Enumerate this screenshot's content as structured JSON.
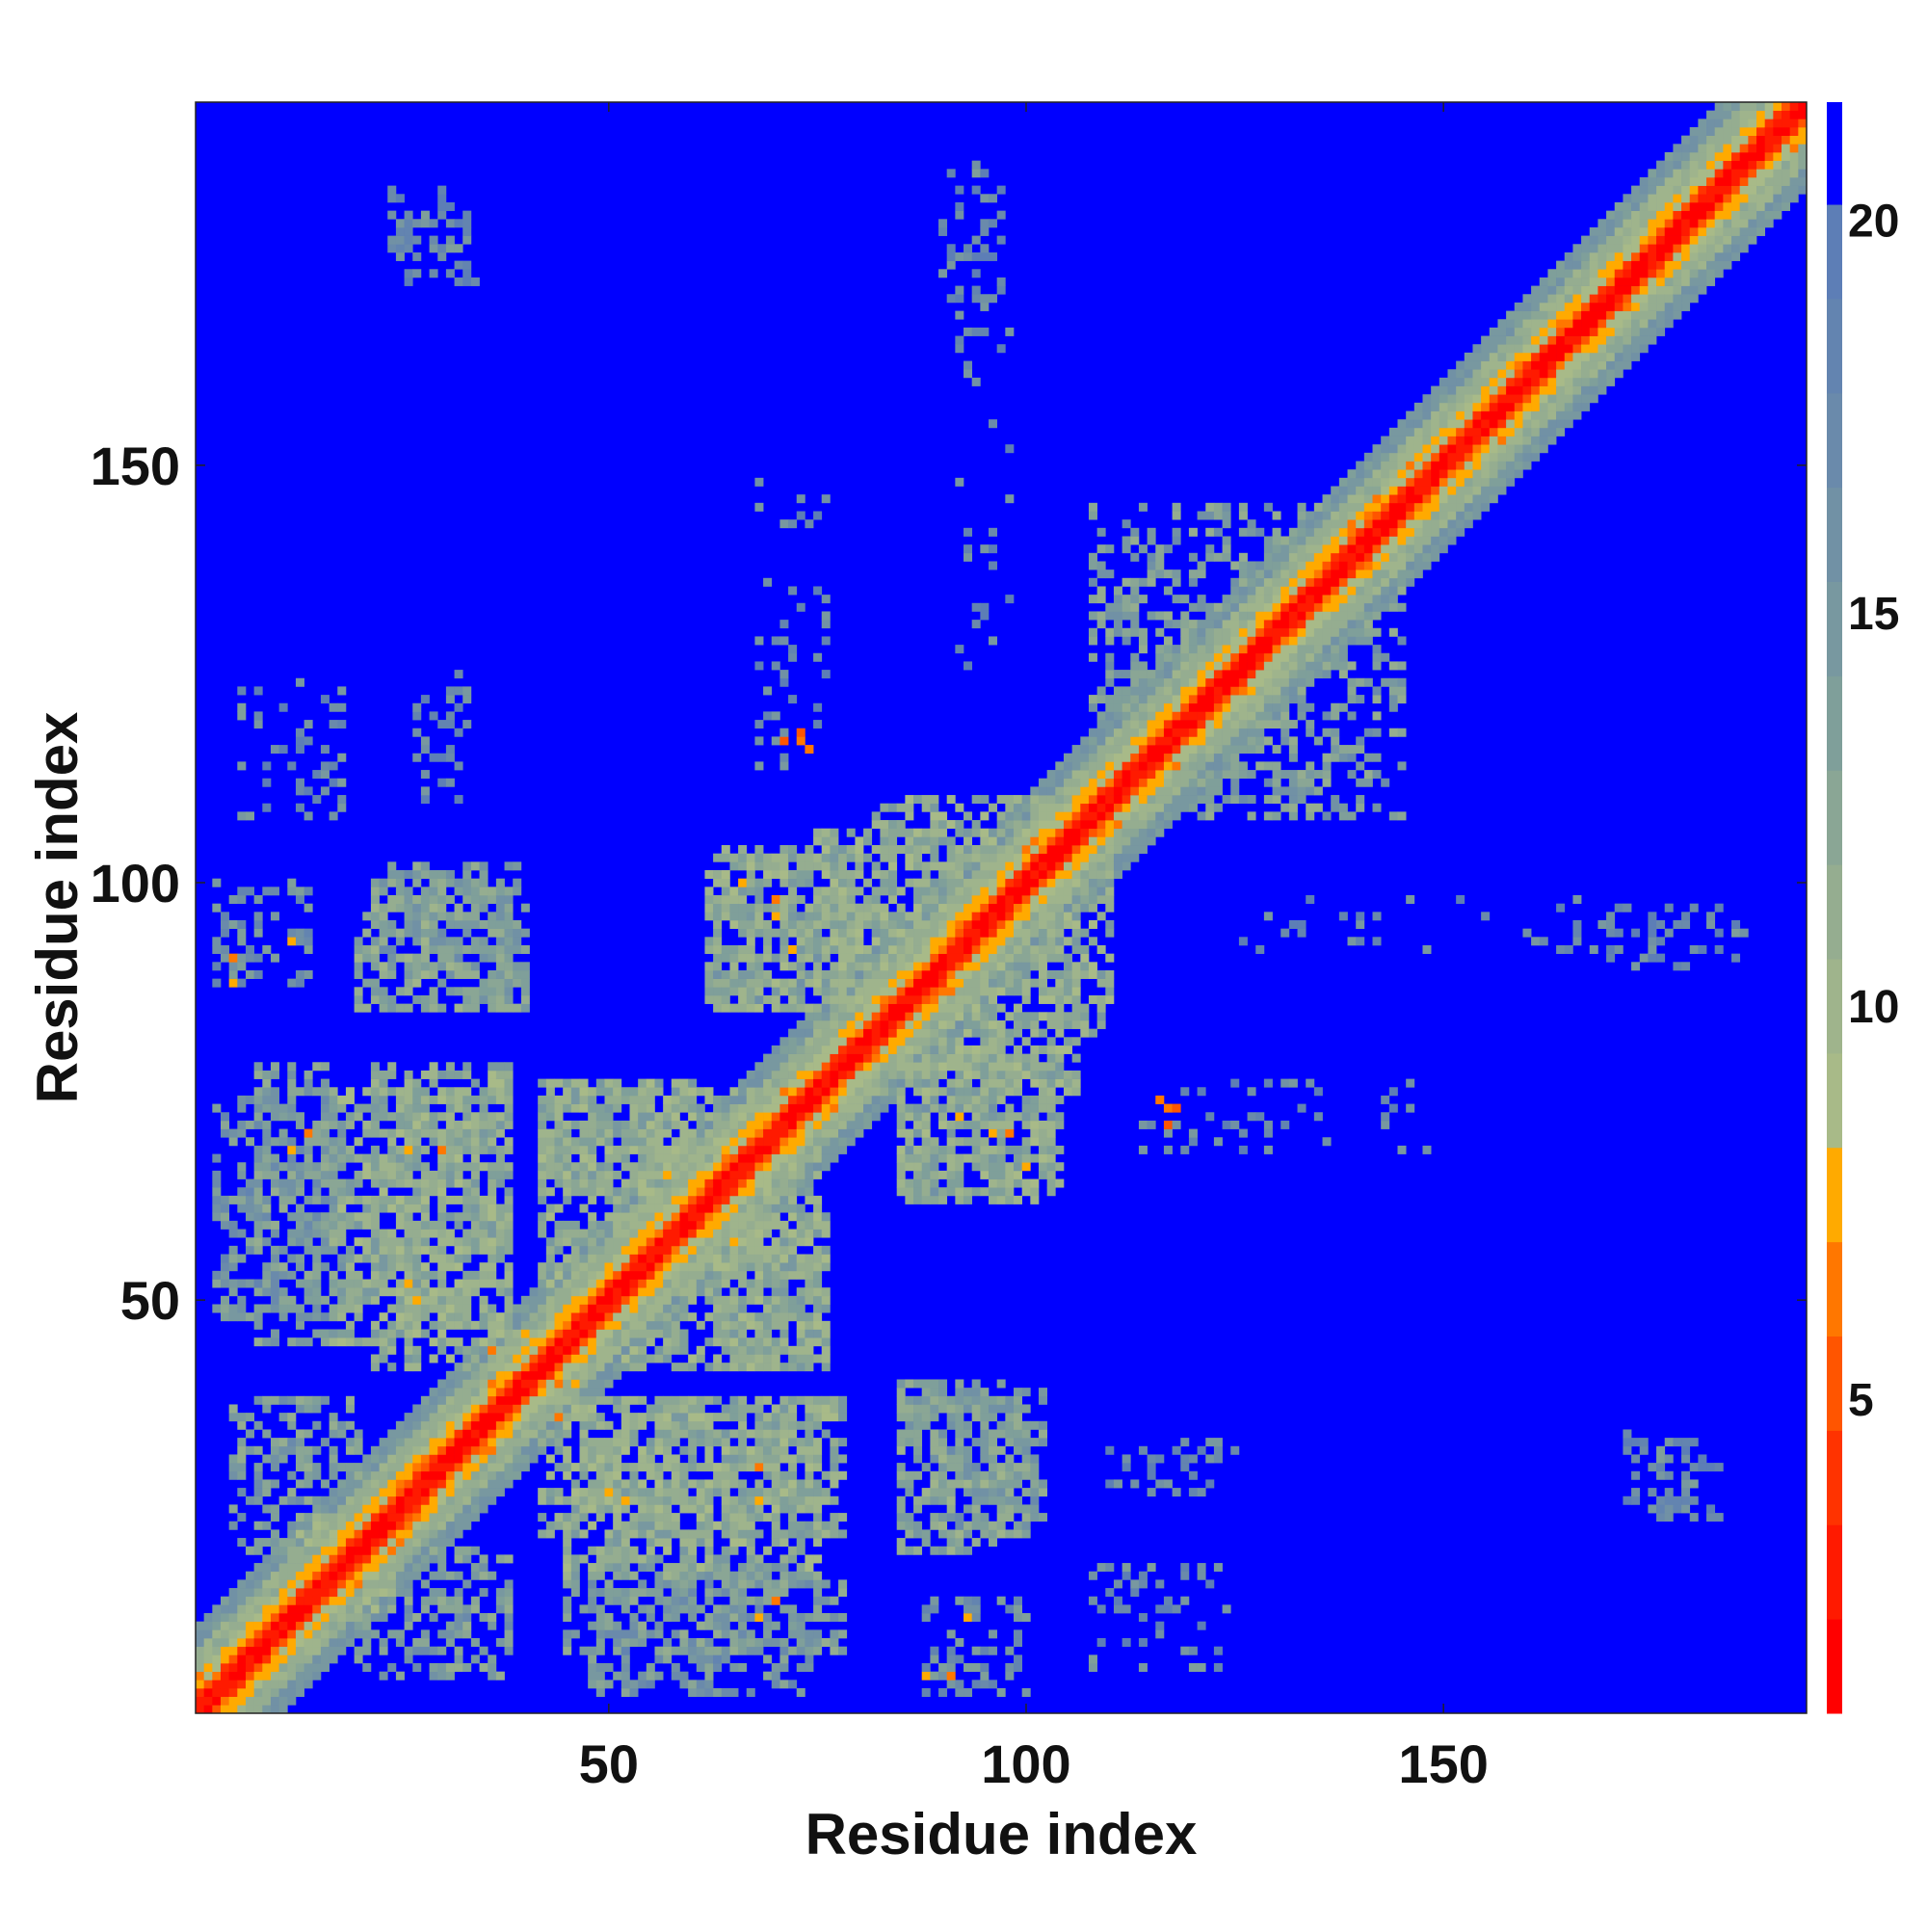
{
  "chart_data": {
    "type": "heatmap",
    "xlabel": "Residue index",
    "ylabel": "Residue index",
    "n_residues": 193,
    "xlim": [
      1,
      193
    ],
    "ylim": [
      1,
      193
    ],
    "xticks": [
      50,
      100,
      150
    ],
    "yticks": [
      50,
      100,
      150
    ],
    "colorbar": {
      "range": [
        1,
        21.5
      ],
      "ticks": [
        5,
        10,
        15,
        20
      ],
      "levels": [
        {
          "from": 1,
          "to": 2.2,
          "color": "#ff0000"
        },
        {
          "from": 2.2,
          "to": 3.4,
          "color": "#ff1a00"
        },
        {
          "from": 3.4,
          "to": 4.6,
          "color": "#ff3300"
        },
        {
          "from": 4.6,
          "to": 5.8,
          "color": "#ff5500"
        },
        {
          "from": 5.8,
          "to": 7.0,
          "color": "#ff7700"
        },
        {
          "from": 7.0,
          "to": 8.2,
          "color": "#ffaa00"
        },
        {
          "from": 8.2,
          "to": 9.4,
          "color": "#a8ba88"
        },
        {
          "from": 9.4,
          "to": 10.6,
          "color": "#9fb48c"
        },
        {
          "from": 10.6,
          "to": 11.8,
          "color": "#95ad90"
        },
        {
          "from": 11.8,
          "to": 13.0,
          "color": "#8aa695"
        },
        {
          "from": 13.0,
          "to": 14.2,
          "color": "#7f9f9a"
        },
        {
          "from": 14.2,
          "to": 15.4,
          "color": "#7898a0"
        },
        {
          "from": 15.4,
          "to": 16.6,
          "color": "#7191a5"
        },
        {
          "from": 16.6,
          "to": 17.8,
          "color": "#6a8aab"
        },
        {
          "from": 17.8,
          "to": 19.0,
          "color": "#6384b0"
        },
        {
          "from": 19.0,
          "to": 20.2,
          "color": "#5d7eb6"
        },
        {
          "from": 20.2,
          "to": 21.5,
          "color": "#0000ff"
        }
      ]
    },
    "diagonal_band": [
      {
        "max_offset": 1,
        "value": 2
      },
      {
        "max_offset": 2,
        "value": 5
      },
      {
        "max_offset": 4,
        "value": 8
      },
      {
        "max_offset": 7,
        "value": 11
      },
      {
        "max_offset": 10,
        "value": 15
      }
    ],
    "background_value": 21,
    "contact_regions": [
      {
        "x": [
          3,
          14
        ],
        "y": [
          88,
          100
        ],
        "value": 16,
        "density": 0.35
      },
      {
        "x": [
          22,
          40
        ],
        "y": [
          85,
          102
        ],
        "value": 14,
        "density": 0.5
      },
      {
        "x": [
          62,
          82
        ],
        "y": [
          85,
          103
        ],
        "value": 13,
        "density": 0.55
      },
      {
        "x": [
          82,
          106
        ],
        "y": [
          75,
          110
        ],
        "value": 12,
        "density": 0.55
      },
      {
        "x": [
          3,
          18
        ],
        "y": [
          48,
          75
        ],
        "value": 15,
        "density": 0.45
      },
      {
        "x": [
          17,
          38
        ],
        "y": [
          45,
          75
        ],
        "value": 12,
        "density": 0.6
      },
      {
        "x": [
          42,
          70
        ],
        "y": [
          52,
          75
        ],
        "value": 12,
        "density": 0.55
      },
      {
        "x": [
          62,
          76
        ],
        "y": [
          42,
          62
        ],
        "value": 12,
        "density": 0.55
      },
      {
        "x": [
          85,
          104
        ],
        "y": [
          62,
          80
        ],
        "value": 12,
        "density": 0.55
      },
      {
        "x": [
          42,
          78
        ],
        "y": [
          22,
          38
        ],
        "value": 12,
        "density": 0.55
      },
      {
        "x": [
          85,
          100
        ],
        "y": [
          20,
          38
        ],
        "value": 13,
        "density": 0.5
      },
      {
        "x": [
          20,
          38
        ],
        "y": [
          5,
          20
        ],
        "value": 14,
        "density": 0.45
      },
      {
        "x": [
          45,
          78
        ],
        "y": [
          8,
          18
        ],
        "value": 14,
        "density": 0.45
      },
      {
        "x": [
          12,
          24
        ],
        "y": [
          14,
          22
        ],
        "value": 12,
        "density": 0.5
      },
      {
        "x": [
          108,
          142
        ],
        "y": [
          108,
          145
        ],
        "value": 14,
        "density": 0.25
      },
      {
        "x": [
          27,
          33
        ],
        "y": [
          110,
          125
        ],
        "value": 17,
        "density": 0.3
      },
      {
        "x": [
          90,
          96
        ],
        "y": [
          170,
          185
        ],
        "value": 18,
        "density": 0.3
      },
      {
        "x": [
          24,
          33
        ],
        "y": [
          175,
          183
        ],
        "value": 18,
        "density": 0.35
      },
      {
        "x": [
          126,
          186
        ],
        "y": [
          92,
          98
        ],
        "value": 17,
        "density": 0.12
      },
      {
        "x": [
          110,
          150
        ],
        "y": [
          68,
          76
        ],
        "value": 17,
        "density": 0.12
      },
      {
        "x": [
          108,
          124
        ],
        "y": [
          6,
          18
        ],
        "value": 17,
        "density": 0.2
      },
      {
        "x": [
          172,
          180
        ],
        "y": [
          26,
          34
        ],
        "value": 17,
        "density": 0.35
      }
    ],
    "close_contacts": [
      {
        "x": 73,
        "y": 117,
        "value": 6
      },
      {
        "x": 71,
        "y": 117,
        "value": 5
      },
      {
        "x": 74,
        "y": 116,
        "value": 7
      },
      {
        "x": 116,
        "y": 74,
        "value": 6
      },
      {
        "x": 118,
        "y": 73,
        "value": 5
      },
      {
        "x": 88,
        "y": 5,
        "value": 7
      },
      {
        "x": 91,
        "y": 5,
        "value": 6
      },
      {
        "x": 12,
        "y": 93,
        "value": 7
      },
      {
        "x": 60,
        "y": 63,
        "value": 7
      },
      {
        "x": 65,
        "y": 57,
        "value": 7
      },
      {
        "x": 27,
        "y": 50,
        "value": 7
      },
      {
        "x": 30,
        "y": 68,
        "value": 6
      },
      {
        "x": 70,
        "y": 96,
        "value": 7
      },
      {
        "x": 66,
        "y": 100,
        "value": 7
      },
      {
        "x": 92,
        "y": 72,
        "value": 7
      },
      {
        "x": 98,
        "y": 70,
        "value": 6
      },
      {
        "x": 52,
        "y": 26,
        "value": 7
      },
      {
        "x": 68,
        "y": 26,
        "value": 7
      },
      {
        "x": 14,
        "y": 70,
        "value": 6
      },
      {
        "x": 46,
        "y": 40,
        "value": 7
      },
      {
        "x": 36,
        "y": 44,
        "value": 6
      },
      {
        "x": 68,
        "y": 12,
        "value": 7
      }
    ]
  }
}
